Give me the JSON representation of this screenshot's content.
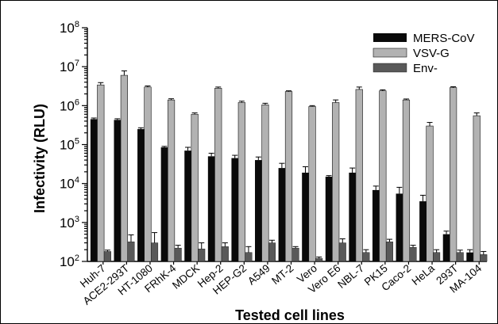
{
  "chart_data": {
    "type": "bar",
    "title": "",
    "xlabel": "Tested cell lines",
    "ylabel": "Infectivity (RLU)",
    "yscale": "log",
    "ylim": [
      100,
      100000000
    ],
    "yticks": [
      {
        "base": "10",
        "exp": "2"
      },
      {
        "base": "10",
        "exp": "3"
      },
      {
        "base": "10",
        "exp": "4"
      },
      {
        "base": "10",
        "exp": "5"
      },
      {
        "base": "10",
        "exp": "6"
      },
      {
        "base": "10",
        "exp": "7"
      },
      {
        "base": "10",
        "exp": "8"
      }
    ],
    "legend_position": "top-right",
    "categories": [
      "Huh-7",
      "ACE2-293T",
      "HT-1080",
      "FRhK-4",
      "MDCK",
      "Hep-2",
      "HEP-G2",
      "A549",
      "MT-2",
      "Vero",
      "Vero E6",
      "NBL-7",
      "PK15",
      "Caco-2",
      "HeLa",
      "293T",
      "MA-104"
    ],
    "series": [
      {
        "name": "MERS-CoV",
        "color": "#0a0a0a",
        "values": [
          450000,
          430000,
          250000,
          85000,
          70000,
          50000,
          45000,
          40000,
          25000,
          19000,
          15000,
          19000,
          6800,
          5500,
          3500,
          500,
          170
        ],
        "err": [
          30000,
          30000,
          20000,
          5000,
          15000,
          10000,
          8000,
          8000,
          8000,
          8000,
          1000,
          6000,
          1800,
          2500,
          1500,
          100,
          30
        ]
      },
      {
        "name": "VSV-G",
        "color": "#b2b2b2",
        "values": [
          3400000,
          6000000,
          3000000,
          1400000,
          600000,
          2800000,
          1200000,
          1050000,
          2300000,
          950000,
          1200000,
          2600000,
          2400000,
          1400000,
          300000,
          2900000,
          550000
        ],
        "err": [
          500000,
          1800000,
          200000,
          100000,
          50000,
          200000,
          100000,
          100000,
          100000,
          50000,
          200000,
          400000,
          150000,
          80000,
          70000,
          150000,
          100000
        ]
      },
      {
        "name": "Env-",
        "color": "#595959",
        "values": [
          180,
          320,
          300,
          220,
          210,
          240,
          170,
          300,
          220,
          120,
          300,
          170,
          320,
          230,
          170,
          170,
          150
        ],
        "err": [
          15,
          160,
          250,
          40,
          90,
          60,
          70,
          50,
          20,
          10,
          80,
          30,
          50,
          30,
          30,
          25,
          30
        ]
      }
    ]
  }
}
